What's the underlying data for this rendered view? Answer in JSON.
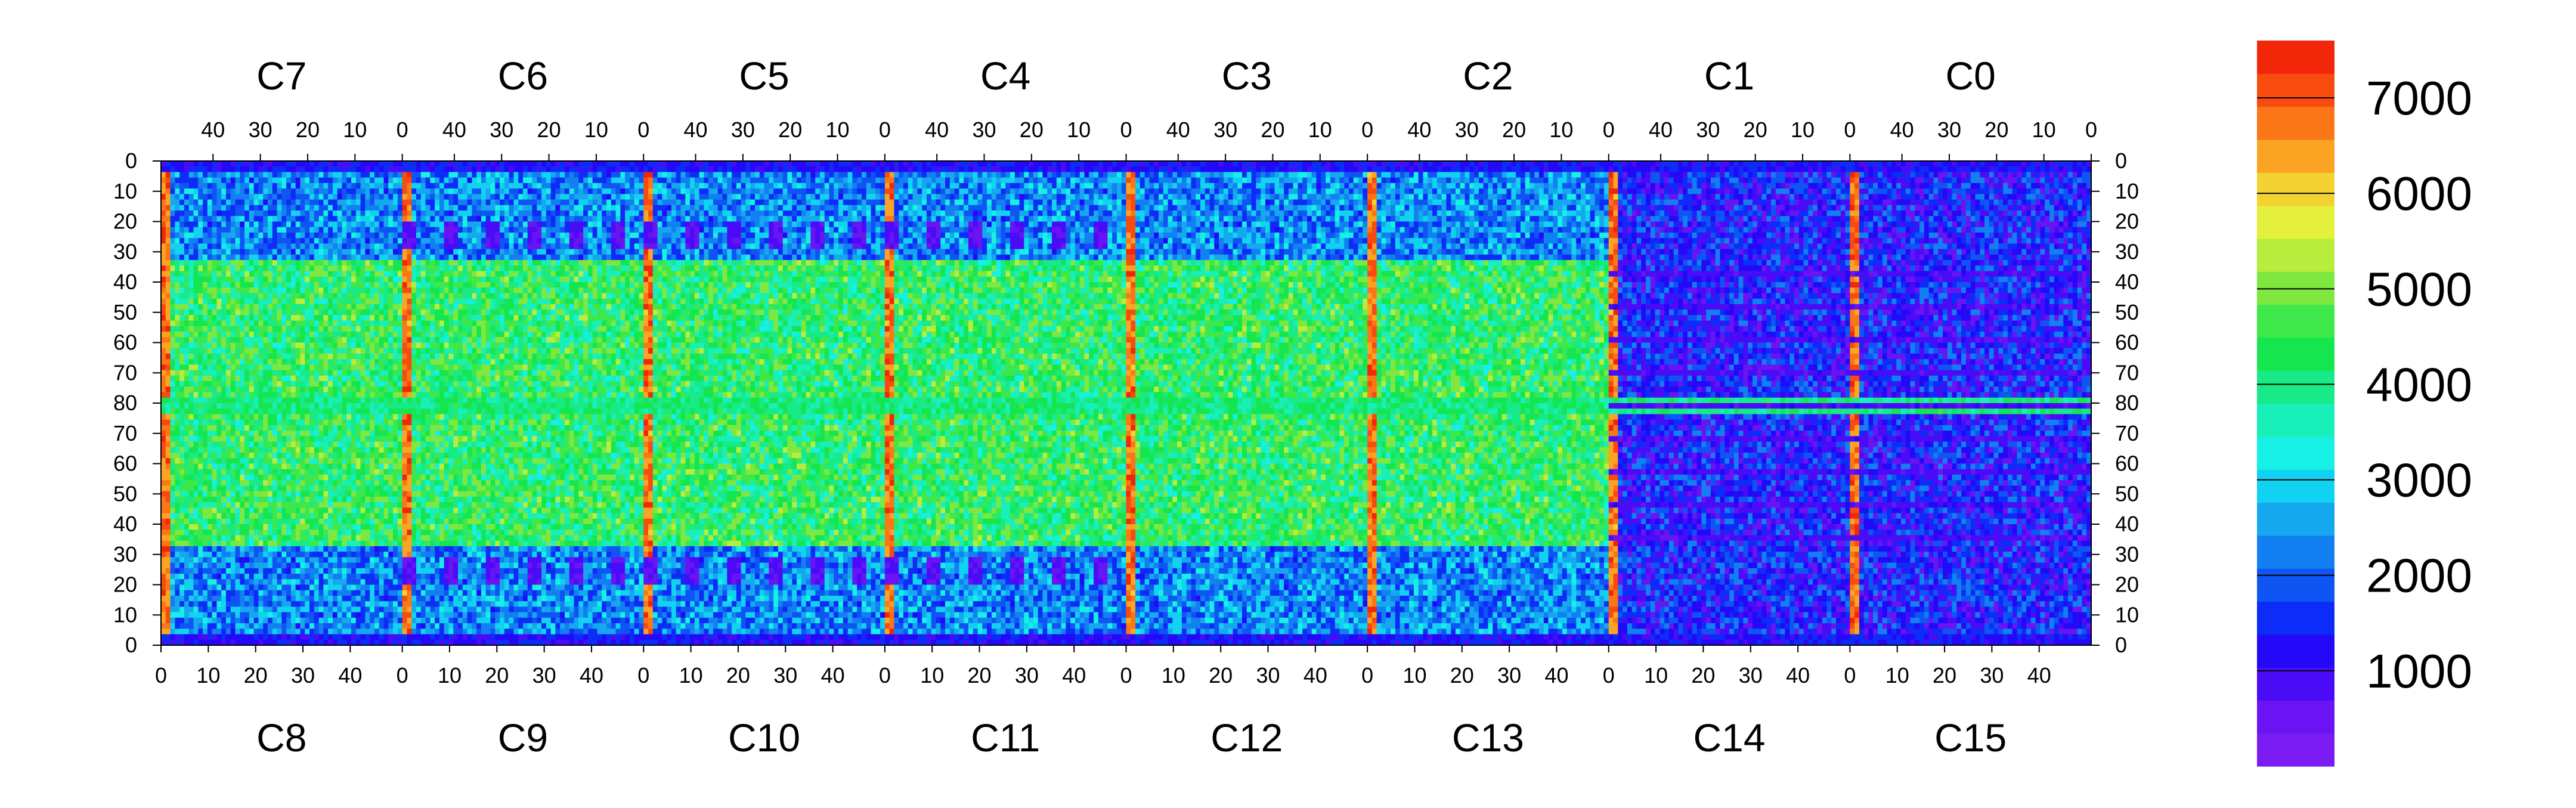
{
  "chart_data": {
    "type": "heatmap",
    "title": "",
    "xlabel": "",
    "ylabel": "",
    "colorbar": {
      "range": [
        0,
        7600
      ],
      "ticks": [
        1000,
        2000,
        3000,
        4000,
        5000,
        6000,
        7000
      ],
      "levels": [
        "#7a1cf2",
        "#6a14f4",
        "#4a0cf6",
        "#2408f8",
        "#0d2cf7",
        "#0f55f4",
        "#1280f2",
        "#16a8ef",
        "#12d2f2",
        "#17f0e4",
        "#19efb8",
        "#17ea86",
        "#15e650",
        "#3ee84a",
        "#7ee841",
        "#b8ed3e",
        "#e4f03b",
        "#f4d232",
        "#fba424",
        "#fb7616",
        "#f84b0f",
        "#f22608"
      ]
    },
    "top_chips": [
      "C7",
      "C6",
      "C5",
      "C4",
      "C3",
      "C2",
      "C1",
      "C0"
    ],
    "bottom_chips": [
      "C8",
      "C9",
      "C10",
      "C11",
      "C12",
      "C13",
      "C14",
      "C15"
    ],
    "top_axis_ticks": [
      "40",
      "30",
      "20",
      "10",
      "0"
    ],
    "bottom_axis_ticks": [
      "0",
      "10",
      "20",
      "30",
      "40"
    ],
    "y_ticks": [
      "0",
      "10",
      "20",
      "30",
      "40",
      "50",
      "60",
      "70",
      "80",
      "70",
      "60",
      "50",
      "40",
      "30",
      "20",
      "10",
      "0"
    ],
    "columns_per_chip": 52,
    "rows_per_half": 80
  }
}
